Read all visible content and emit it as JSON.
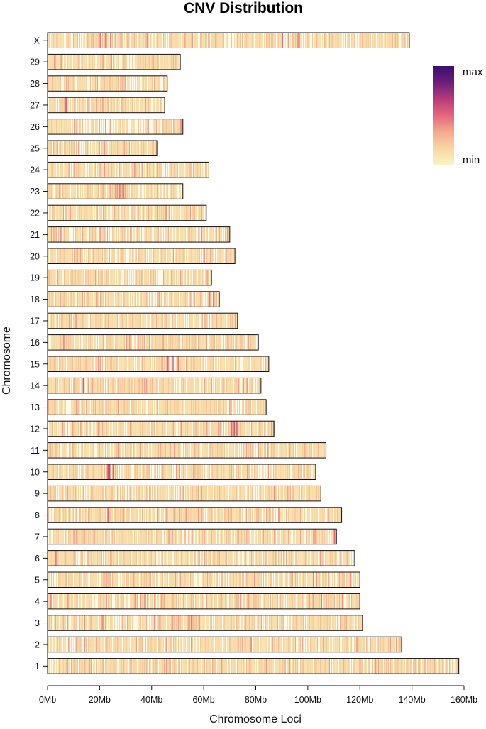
{
  "chart_data": {
    "type": "heatmap",
    "title": "CNV Distribution",
    "xlabel": "Chromosome Loci",
    "ylabel": "Chromosome",
    "x_unit": "Mb",
    "xlim": [
      0,
      160
    ],
    "x_ticks": [
      0,
      20,
      40,
      60,
      80,
      100,
      120,
      140,
      160
    ],
    "x_tick_labels": [
      "0Mb",
      "20Mb",
      "40Mb",
      "60Mb",
      "80Mb",
      "100Mb",
      "120Mb",
      "140Mb",
      "160Mb"
    ],
    "color_scale": [
      "#fbf3c2",
      "#f8d6a3",
      "#f3a98e",
      "#e5677a",
      "#b83a78",
      "#6b1f7a",
      "#3b0f70"
    ],
    "legend": {
      "max_label": "max",
      "min_label": "min",
      "placement": "top-right"
    },
    "chromosomes": [
      {
        "name": "1",
        "length": 158,
        "hotspots": [
          [
            157.5,
            0.55
          ]
        ]
      },
      {
        "name": "2",
        "length": 136,
        "hotspots": [
          [
            78,
            0.4
          ]
        ]
      },
      {
        "name": "3",
        "length": 121,
        "hotspots": [
          [
            14,
            0.4
          ],
          [
            21,
            0.4
          ],
          [
            55,
            0.45
          ]
        ]
      },
      {
        "name": "4",
        "length": 120,
        "hotspots": [
          [
            1,
            0.4
          ],
          [
            105,
            0.45
          ],
          [
            113,
            0.4
          ]
        ]
      },
      {
        "name": "5",
        "length": 120,
        "hotspots": [
          [
            102,
            0.5
          ],
          [
            103,
            0.45
          ]
        ]
      },
      {
        "name": "6",
        "length": 118,
        "hotspots": [
          [
            3,
            0.45
          ],
          [
            10,
            0.4
          ]
        ]
      },
      {
        "name": "7",
        "length": 111,
        "hotspots": [
          [
            10,
            0.45
          ],
          [
            11,
            0.4
          ],
          [
            110,
            0.5
          ]
        ]
      },
      {
        "name": "8",
        "length": 113,
        "hotspots": [
          [
            23,
            0.5
          ]
        ]
      },
      {
        "name": "9",
        "length": 105,
        "hotspots": [
          [
            87,
            0.45
          ]
        ]
      },
      {
        "name": "10",
        "length": 103,
        "hotspots": [
          [
            23,
            0.6
          ],
          [
            23.6,
            0.6
          ],
          [
            25,
            0.55
          ]
        ]
      },
      {
        "name": "11",
        "length": 107,
        "hotspots": [
          [
            27,
            0.4
          ]
        ]
      },
      {
        "name": "12",
        "length": 87,
        "hotspots": [
          [
            70.5,
            0.5
          ],
          [
            71.5,
            0.55
          ],
          [
            72.5,
            0.5
          ]
        ]
      },
      {
        "name": "13",
        "length": 84,
        "hotspots": [
          [
            11,
            0.45
          ]
        ]
      },
      {
        "name": "14",
        "length": 82,
        "hotspots": [
          [
            13.5,
            0.55
          ]
        ]
      },
      {
        "name": "15",
        "length": 85,
        "hotspots": [
          [
            46,
            0.5
          ],
          [
            48,
            0.45
          ],
          [
            50,
            0.45
          ]
        ]
      },
      {
        "name": "16",
        "length": 81,
        "hotspots": [
          [
            6,
            0.4
          ]
        ]
      },
      {
        "name": "17",
        "length": 73,
        "hotspots": [
          [
            72,
            0.4
          ]
        ]
      },
      {
        "name": "18",
        "length": 66,
        "hotspots": [
          [
            62,
            0.45
          ],
          [
            63.5,
            0.45
          ]
        ]
      },
      {
        "name": "19",
        "length": 63,
        "hotspots": []
      },
      {
        "name": "20",
        "length": 72,
        "hotspots": []
      },
      {
        "name": "21",
        "length": 70,
        "hotspots": [
          [
            59,
            0.4
          ],
          [
            20,
            0.35
          ]
        ]
      },
      {
        "name": "22",
        "length": 61,
        "hotspots": []
      },
      {
        "name": "23",
        "length": 52,
        "hotspots": [
          [
            26,
            0.45
          ],
          [
            27.5,
            0.45
          ],
          [
            29,
            0.45
          ]
        ]
      },
      {
        "name": "24",
        "length": 62,
        "hotspots": []
      },
      {
        "name": "25",
        "length": 42,
        "hotspots": [
          [
            2,
            0.3
          ]
        ]
      },
      {
        "name": "26",
        "length": 52,
        "hotspots": [
          [
            51,
            0.4
          ]
        ]
      },
      {
        "name": "27",
        "length": 45,
        "hotspots": [
          [
            6.5,
            0.55
          ],
          [
            7,
            0.5
          ]
        ]
      },
      {
        "name": "28",
        "length": 46,
        "hotspots": []
      },
      {
        "name": "29",
        "length": 51,
        "hotspots": [
          [
            5,
            0.35
          ]
        ]
      },
      {
        "name": "X",
        "length": 139,
        "hotspots": [
          [
            20,
            0.45
          ],
          [
            22,
            0.45
          ],
          [
            24,
            0.45
          ],
          [
            26,
            0.45
          ],
          [
            28,
            0.4
          ],
          [
            38,
            0.4
          ],
          [
            90,
            0.5
          ],
          [
            96,
            0.4
          ]
        ]
      }
    ]
  }
}
